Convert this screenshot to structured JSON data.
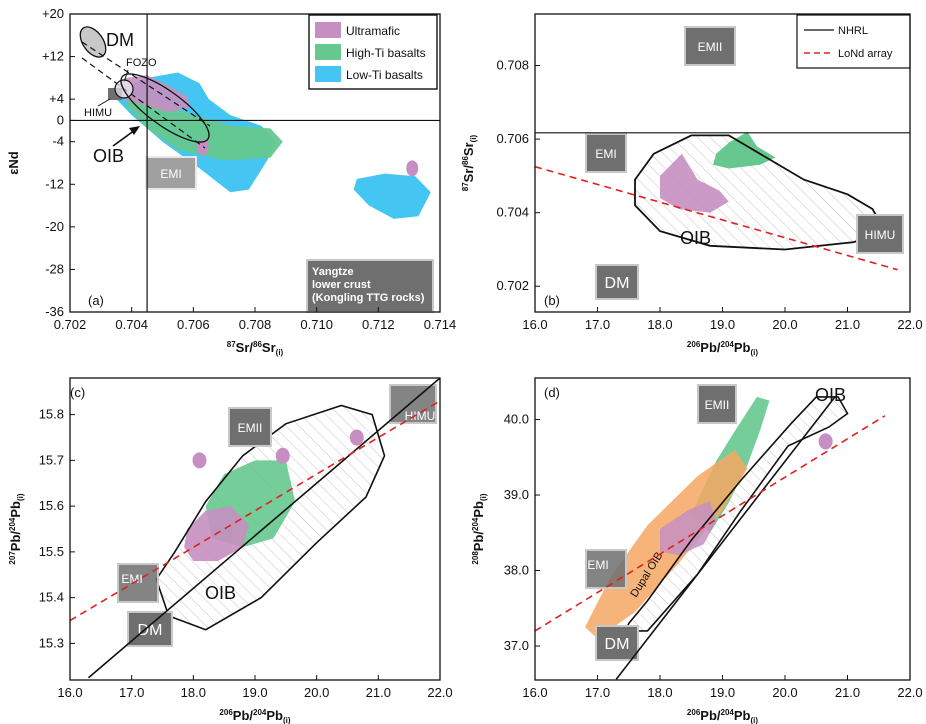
{
  "chart_data": [
    {
      "type": "scatter",
      "panel": "(a)",
      "xlabel": "87Sr/86Sr(i)",
      "ylabel": "εNd",
      "xlim": [
        0.702,
        0.714
      ],
      "ylim": [
        -36,
        20
      ],
      "xticks": [
        "0.702",
        "0.704",
        "0.706",
        "0.708",
        "0.710",
        "0.712",
        "0.714"
      ],
      "yticks": [
        "+20",
        "+12",
        "+4",
        "0",
        "-4",
        "-12",
        "-20",
        "-28",
        "-36"
      ],
      "legend": {
        "placement": "top-right",
        "entries": [
          {
            "label": "Ultramafic",
            "color": "#c58fc1"
          },
          {
            "label": "High-Ti basalts",
            "color": "#66c88f"
          },
          {
            "label": "Low-Ti basalts",
            "color": "#45c6f2"
          }
        ]
      },
      "reference_lines": {
        "x": 0.7045,
        "y": 0
      },
      "fields": {
        "DM": "DM",
        "FOZO": "FOZO",
        "HIMU": "HIMU",
        "OIB": "OIB",
        "EMI": "EMI"
      },
      "annotation": "Yangtze lower crust (Kongling TTG rocks)",
      "annotation_lines": [
        "Yangtze",
        "lower crust",
        "(Kongling TTG rocks)"
      ],
      "series": [
        {
          "name": "Ultramafic",
          "polygon": [
            [
              0.7034,
              6
            ],
            [
              0.7038,
              8
            ],
            [
              0.7045,
              8.5
            ],
            [
              0.7052,
              6.5
            ],
            [
              0.7058,
              4.5
            ],
            [
              0.7059,
              2.5
            ],
            [
              0.7052,
              1.5
            ],
            [
              0.7046,
              2.5
            ],
            [
              0.704,
              3.5
            ],
            [
              0.7035,
              4.5
            ]
          ],
          "points": [
            [
              0.7063,
              -5
            ],
            [
              0.7131,
              -9
            ]
          ]
        },
        {
          "name": "High-Ti basalts",
          "polygon": [
            [
              0.704,
              5
            ],
            [
              0.705,
              3
            ],
            [
              0.706,
              1
            ],
            [
              0.7072,
              -1
            ],
            [
              0.7085,
              -1.5
            ],
            [
              0.7089,
              -4
            ],
            [
              0.7085,
              -7
            ],
            [
              0.707,
              -7.5
            ],
            [
              0.7055,
              -5.5
            ],
            [
              0.7045,
              -1.5
            ],
            [
              0.7038,
              3
            ]
          ]
        },
        {
          "name": "Low-Ti basalts",
          "polygon": [
            [
              0.7036,
              6
            ],
            [
              0.7045,
              8
            ],
            [
              0.7055,
              9
            ],
            [
              0.7062,
              7
            ],
            [
              0.7065,
              4
            ],
            [
              0.7072,
              1
            ],
            [
              0.7082,
              -1
            ],
            [
              0.7087,
              -4
            ],
            [
              0.7084,
              -7.5
            ],
            [
              0.7078,
              -13
            ],
            [
              0.7072,
              -13.5
            ],
            [
              0.7062,
              -9
            ],
            [
              0.705,
              -4
            ],
            [
              0.704,
              1
            ],
            [
              0.7035,
              4
            ]
          ],
          "secondary_polygon": [
            [
              0.7113,
              -11
            ],
            [
              0.7122,
              -10
            ],
            [
              0.7132,
              -10.5
            ],
            [
              0.7137,
              -13.5
            ],
            [
              0.7133,
              -18
            ],
            [
              0.7125,
              -18.5
            ],
            [
              0.7117,
              -16
            ],
            [
              0.7112,
              -13
            ]
          ]
        }
      ]
    },
    {
      "type": "scatter",
      "panel": "(b)",
      "xlabel": "206Pb/204Pb(i)",
      "ylabel": "87Sr/86Sr(i)",
      "xlim": [
        16.0,
        22.0
      ],
      "ylim": [
        0.7013,
        0.7094
      ],
      "xticks": [
        "16.0",
        "17.0",
        "18.0",
        "19.0",
        "20.0",
        "21.0",
        "22.0"
      ],
      "yticks": [
        "0.702",
        "0.704",
        "0.706",
        "0.708"
      ],
      "legend": {
        "placement": "top-right",
        "entries": [
          {
            "label": "NHRL",
            "style": "solid-black"
          },
          {
            "label": "LoNd array",
            "style": "dashed-red"
          }
        ]
      },
      "reference_lines": {
        "y": 0.70617
      },
      "lond_array": [
        [
          16.0,
          0.70525
        ],
        [
          21.8,
          0.70245
        ]
      ],
      "fields": {
        "EMII": "EMII",
        "EMI": "EMI",
        "HIMU": "HIMU",
        "DM": "DM",
        "OIB": "OIB"
      },
      "series": [
        {
          "name": "Ultramafic",
          "polygon": [
            [
              18.0,
              0.705
            ],
            [
              18.35,
              0.7056
            ],
            [
              18.6,
              0.7049
            ],
            [
              18.95,
              0.7046
            ],
            [
              19.1,
              0.7043
            ],
            [
              18.8,
              0.704
            ],
            [
              18.3,
              0.7041
            ],
            [
              18.0,
              0.7044
            ]
          ]
        },
        {
          "name": "High-Ti basalts",
          "polygon": [
            [
              18.9,
              0.7056
            ],
            [
              19.1,
              0.7059
            ],
            [
              19.4,
              0.7062
            ],
            [
              19.55,
              0.7058
            ],
            [
              19.85,
              0.7055
            ],
            [
              19.6,
              0.7053
            ],
            [
              19.1,
              0.7052
            ],
            [
              18.85,
              0.7053
            ]
          ]
        },
        {
          "name": "OIB",
          "polygon": [
            [
              17.6,
              0.7049
            ],
            [
              17.9,
              0.7056
            ],
            [
              18.5,
              0.7061
            ],
            [
              19.1,
              0.7061
            ],
            [
              19.7,
              0.7055
            ],
            [
              20.3,
              0.7049
            ],
            [
              21.0,
              0.7045
            ],
            [
              21.4,
              0.7041
            ],
            [
              21.6,
              0.7035
            ],
            [
              21.1,
              0.7032
            ],
            [
              20.0,
              0.703
            ],
            [
              18.8,
              0.7031
            ],
            [
              18.0,
              0.7035
            ],
            [
              17.6,
              0.7042
            ]
          ]
        }
      ]
    },
    {
      "type": "scatter",
      "panel": "(c)",
      "xlabel": "206Pb/204Pb(i)",
      "ylabel": "207Pb/204Pb(i)",
      "xlim": [
        16.0,
        22.0
      ],
      "ylim": [
        15.22,
        15.88
      ],
      "xticks": [
        "16.0",
        "17.0",
        "18.0",
        "19.0",
        "20.0",
        "21.0",
        "22.0"
      ],
      "yticks": [
        "15.3",
        "15.4",
        "15.5",
        "15.6",
        "15.7",
        "15.8"
      ],
      "nhrl": [
        [
          16.3,
          15.225
        ],
        [
          22.0,
          15.88
        ]
      ],
      "lond_array": [
        [
          16.0,
          15.35
        ],
        [
          22.0,
          15.83
        ]
      ],
      "fields": {
        "EMII": "EMII",
        "EMI": "EMI",
        "HIMU": "HIMU",
        "DM": "DM",
        "OIB": "OIB"
      },
      "series": [
        {
          "name": "Ultramafic",
          "polygon": [
            [
              17.9,
              15.55
            ],
            [
              18.2,
              15.59
            ],
            [
              18.6,
              15.6
            ],
            [
              18.9,
              15.56
            ],
            [
              18.8,
              15.51
            ],
            [
              18.4,
              15.48
            ],
            [
              18.0,
              15.48
            ],
            [
              17.85,
              15.51
            ]
          ],
          "points": [
            [
              18.1,
              15.7
            ],
            [
              19.45,
              15.71
            ],
            [
              20.65,
              15.75
            ]
          ]
        },
        {
          "name": "High-Ti basalts",
          "polygon": [
            [
              18.2,
              15.6
            ],
            [
              18.5,
              15.67
            ],
            [
              19.0,
              15.7
            ],
            [
              19.5,
              15.7
            ],
            [
              19.65,
              15.61
            ],
            [
              19.3,
              15.53
            ],
            [
              18.8,
              15.51
            ],
            [
              18.3,
              15.53
            ]
          ]
        },
        {
          "name": "OIB",
          "polygon": [
            [
              17.4,
              15.44
            ],
            [
              17.7,
              15.5
            ],
            [
              18.2,
              15.61
            ],
            [
              18.8,
              15.71
            ],
            [
              19.5,
              15.78
            ],
            [
              20.4,
              15.82
            ],
            [
              20.9,
              15.8
            ],
            [
              21.1,
              15.71
            ],
            [
              20.8,
              15.62
            ],
            [
              20.0,
              15.52
            ],
            [
              19.1,
              15.4
            ],
            [
              18.2,
              15.33
            ],
            [
              17.6,
              15.36
            ]
          ]
        }
      ]
    },
    {
      "type": "scatter",
      "panel": "(d)",
      "xlabel": "206Pb/204Pb(i)",
      "ylabel": "208Pb/204Pb(i)",
      "xlim": [
        16.0,
        22.0
      ],
      "ylim": [
        36.55,
        40.55
      ],
      "xticks": [
        "16.0",
        "17.0",
        "18.0",
        "19.0",
        "20.0",
        "21.0",
        "22.0"
      ],
      "yticks": [
        "37.0",
        "38.0",
        "39.0",
        "40.0"
      ],
      "nhrl": [
        [
          17.3,
          36.56
        ],
        [
          20.8,
          40.3
        ]
      ],
      "lond_array": [
        [
          16.0,
          37.2
        ],
        [
          21.6,
          40.05
        ]
      ],
      "fields": {
        "EMII": "EMII",
        "EMI": "EMI",
        "DM": "DM",
        "OIB": "OIB",
        "Dupal": "Dupal OIB"
      },
      "series": [
        {
          "name": "Ultramafic",
          "polygon": [
            [
              18.0,
              38.55
            ],
            [
              18.45,
              38.8
            ],
            [
              18.8,
              38.92
            ],
            [
              18.9,
              38.65
            ],
            [
              18.7,
              38.35
            ],
            [
              18.3,
              38.2
            ],
            [
              18.0,
              38.25
            ]
          ],
          "points": [
            [
              20.65,
              39.71
            ]
          ]
        },
        {
          "name": "High-Ti basalts",
          "polygon": [
            [
              18.5,
              38.75
            ],
            [
              18.9,
              39.45
            ],
            [
              19.2,
              39.85
            ],
            [
              19.55,
              40.3
            ],
            [
              19.75,
              40.25
            ],
            [
              19.6,
              39.85
            ],
            [
              19.4,
              39.4
            ],
            [
              19.1,
              38.9
            ],
            [
              18.8,
              38.5
            ]
          ]
        },
        {
          "name": "Dupal OIB",
          "polygon": [
            [
              16.8,
              37.25
            ],
            [
              17.2,
              37.9
            ],
            [
              17.8,
              38.6
            ],
            [
              18.6,
              39.25
            ],
            [
              19.2,
              39.6
            ],
            [
              19.4,
              39.35
            ],
            [
              19.0,
              38.8
            ],
            [
              18.3,
              38.1
            ],
            [
              17.6,
              37.45
            ],
            [
              17.0,
              37.1
            ]
          ]
        },
        {
          "name": "OIB",
          "polygon": [
            [
              17.5,
              37.3
            ],
            [
              17.8,
              37.6
            ],
            [
              18.5,
              38.4
            ],
            [
              19.3,
              39.2
            ],
            [
              20.1,
              39.95
            ],
            [
              20.5,
              40.3
            ],
            [
              20.85,
              40.3
            ],
            [
              21.0,
              40.08
            ],
            [
              20.7,
              39.9
            ],
            [
              20.05,
              39.65
            ],
            [
              19.3,
              38.8
            ],
            [
              18.6,
              37.95
            ],
            [
              17.8,
              37.2
            ],
            [
              17.45,
              37.2
            ]
          ]
        }
      ]
    }
  ],
  "colors": {
    "ultramafic": "#c58fc1",
    "high_ti": "#66c88f",
    "low_ti": "#45c6f2",
    "dupal": "#f6a763",
    "box_fill": "#6f6f6f",
    "box_text": "#ffffff",
    "lond_array": "#e02020"
  }
}
